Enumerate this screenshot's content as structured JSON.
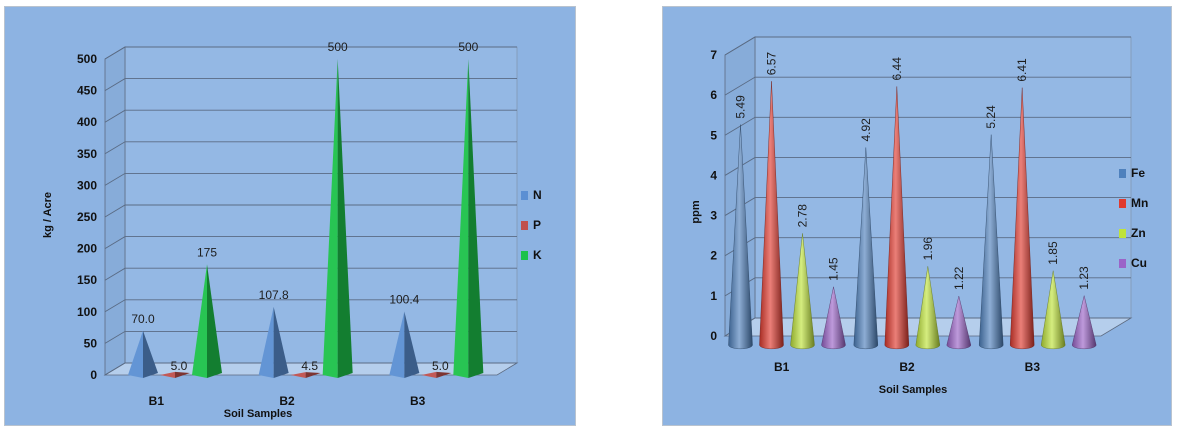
{
  "chart_data": [
    {
      "type": "bar",
      "style": "3d-pyramid",
      "categories": [
        "B1",
        "B2",
        "B3"
      ],
      "series": [
        {
          "name": "N",
          "values": [
            70.0,
            107.8,
            100.4
          ],
          "labels": [
            "70.0",
            "107.8",
            "100.4"
          ],
          "color": "#5b8fd3"
        },
        {
          "name": "P",
          "values": [
            5.0,
            4.5,
            5.0
          ],
          "labels": [
            "5.0",
            "4.5",
            "5.0"
          ],
          "color": "#c0504d"
        },
        {
          "name": "K",
          "values": [
            175,
            500,
            500
          ],
          "labels": [
            "175",
            "500",
            "500"
          ],
          "color": "#1dc24a"
        }
      ],
      "ylabel": "kg / Acre",
      "xlabel": "Soil Samples",
      "ylim": [
        0,
        500
      ],
      "yticks": [
        "0",
        "50",
        "100",
        "150",
        "200",
        "250",
        "300",
        "350",
        "400",
        "450",
        "500"
      ],
      "grid": true,
      "legend": "right",
      "background": "#8db3e2"
    },
    {
      "type": "bar",
      "style": "3d-cone",
      "categories": [
        "B1",
        "B2",
        "B3"
      ],
      "series": [
        {
          "name": "Fe",
          "values": [
            5.49,
            4.92,
            5.24
          ],
          "labels": [
            "5.49",
            "4.92",
            "5.24"
          ],
          "color": "#4f81bd"
        },
        {
          "name": "Mn",
          "values": [
            6.57,
            6.44,
            6.41
          ],
          "labels": [
            "6.57",
            "6.44",
            "6.41"
          ],
          "color": "#e03a2f"
        },
        {
          "name": "Zn",
          "values": [
            2.78,
            1.96,
            1.85
          ],
          "labels": [
            "2.78",
            "1.96",
            "1.85"
          ],
          "color": "#bfe33a"
        },
        {
          "name": "Cu",
          "values": [
            1.45,
            1.22,
            1.23
          ],
          "labels": [
            "1.45",
            "1.22",
            "1.23"
          ],
          "color": "#9b64c8"
        }
      ],
      "ylabel": "ppm",
      "xlabel": "Soil Samples",
      "ylim": [
        0,
        7
      ],
      "yticks": [
        "0",
        "1",
        "2",
        "3",
        "4",
        "5",
        "6",
        "7"
      ],
      "grid": true,
      "legend": "right",
      "background": "#8db3e2"
    }
  ]
}
